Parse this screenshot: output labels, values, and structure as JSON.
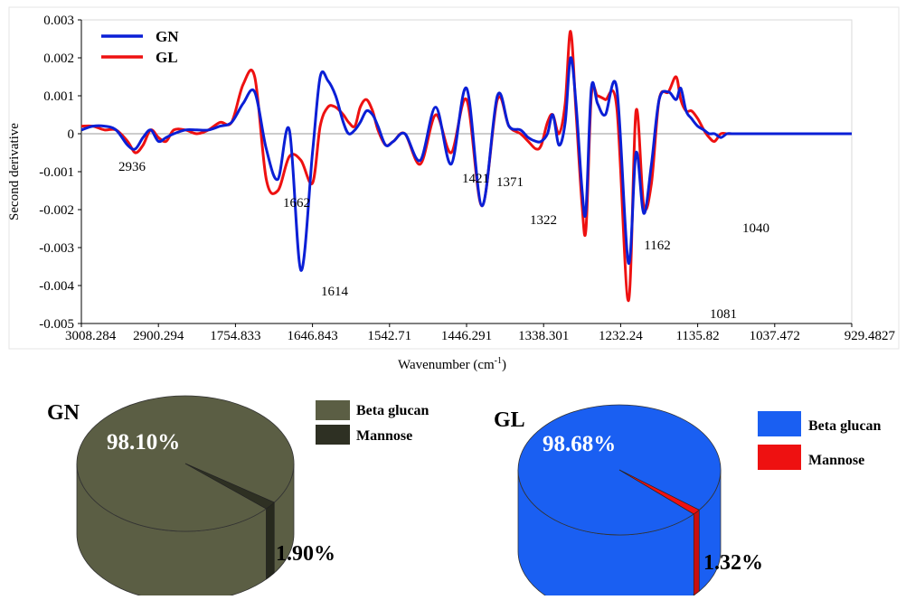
{
  "chart_data": [
    {
      "type": "line",
      "ylabel": "Second derivative",
      "xlabel": "Wavenumber (cm-1)",
      "xlabel_main": "Wavenumber (cm",
      "xlabel_sup": "-1",
      "xlabel_end": ")",
      "ylim": [
        -0.005,
        0.003
      ],
      "yticks": [
        "0.003",
        "0.002",
        "0.001",
        "0",
        "-0.001",
        "-0.002",
        "-0.003",
        "-0.004",
        "-0.005"
      ],
      "xticks": [
        "3008.284",
        "2900.294",
        "1754.833",
        "1646.843",
        "1542.71",
        "1446.291",
        "1338.301",
        "1232.24",
        "1135.82",
        "1037.472",
        "929.4827"
      ],
      "xlim": [
        0,
        10
      ],
      "grid": false,
      "legend_position": "top-left",
      "series": [
        {
          "name": "GN",
          "color": "#0a1fd6",
          "x": [
            0,
            0.15,
            0.3,
            0.45,
            0.6,
            0.7,
            0.8,
            0.9,
            1.0,
            1.1,
            1.2,
            1.35,
            1.5,
            1.65,
            1.8,
            1.95,
            2.1,
            2.25,
            2.4,
            2.55,
            2.7,
            2.85,
            3.0,
            3.1,
            3.2,
            3.3,
            3.4,
            3.47,
            3.55,
            3.62,
            3.7,
            3.78,
            3.85,
            3.95,
            4.05,
            4.2,
            4.4,
            4.6,
            4.8,
            5.0,
            5.2,
            5.4,
            5.55,
            5.7,
            5.8,
            5.9,
            5.97,
            6.05,
            6.12,
            6.2,
            6.28,
            6.35,
            6.42,
            6.5,
            6.55,
            6.62,
            6.7,
            6.8,
            6.95,
            7.1,
            7.2,
            7.3,
            7.4,
            7.5,
            7.62,
            7.72,
            7.78,
            7.85,
            7.92,
            8.0,
            8.08,
            8.15,
            8.22,
            8.3,
            8.38,
            8.45,
            8.52,
            8.6,
            8.68,
            8.75,
            8.82,
            8.9,
            9.0,
            9.1,
            9.2,
            9.3,
            9.42,
            9.52,
            9.62,
            9.75,
            9.85,
            9.95,
            10.0
          ],
          "values": [
            0.0001,
            0.0002,
            0.0002,
            0.0001,
            -0.0003,
            -0.0004,
            -0.0001,
            0.0001,
            -0.0002,
            -0.0001,
            0.0,
            0.0001,
            0.0001,
            0.0001,
            0.0002,
            0.0003,
            0.0008,
            0.0011,
            -0.0004,
            -0.0012,
            0.0001,
            -0.0036,
            -0.0005,
            0.0015,
            0.0014,
            0.001,
            0.0003,
            0.0,
            0.0001,
            0.0003,
            0.0006,
            0.0005,
            0.0002,
            -0.0003,
            -0.0002,
            0.0,
            -0.0007,
            0.0007,
            -0.0008,
            0.0012,
            -0.0019,
            0.001,
            0.0002,
            0.0001,
            -0.0001,
            -0.0002,
            -0.0002,
            0.0,
            0.0005,
            -0.0003,
            0.0003,
            0.002,
            0.0008,
            -0.0015,
            -0.002,
            0.0012,
            0.0008,
            0.0005,
            0.0012,
            -0.0034,
            -0.0005,
            -0.0021,
            -0.0008,
            0.0009,
            0.0011,
            0.0009,
            0.0012,
            0.0006,
            0.0004,
            0.0002,
            0.0001,
            0.0,
            0.0,
            -0.0001,
            0.0,
            0.0,
            0.0,
            0.0,
            0.0,
            0.0,
            0.0,
            0.0,
            0.0,
            0.0,
            0.0,
            0.0,
            0.0,
            0.0,
            0.0,
            0.0,
            0.0,
            0.0,
            0.0
          ]
        },
        {
          "name": "GL",
          "color": "#ee1111",
          "x": [
            0,
            0.15,
            0.3,
            0.45,
            0.6,
            0.7,
            0.8,
            0.9,
            1.0,
            1.1,
            1.2,
            1.35,
            1.5,
            1.65,
            1.8,
            1.95,
            2.1,
            2.25,
            2.4,
            2.55,
            2.7,
            2.85,
            3.0,
            3.1,
            3.2,
            3.3,
            3.4,
            3.47,
            3.55,
            3.62,
            3.7,
            3.78,
            3.85,
            3.95,
            4.05,
            4.2,
            4.4,
            4.6,
            4.8,
            5.0,
            5.2,
            5.4,
            5.55,
            5.7,
            5.8,
            5.9,
            5.97,
            6.05,
            6.12,
            6.2,
            6.28,
            6.35,
            6.42,
            6.5,
            6.55,
            6.62,
            6.7,
            6.8,
            6.95,
            7.1,
            7.2,
            7.3,
            7.4,
            7.5,
            7.62,
            7.72,
            7.78,
            7.85,
            7.92,
            8.0,
            8.08,
            8.15,
            8.22,
            8.3,
            8.38,
            8.45,
            8.52,
            8.6,
            8.68,
            8.75,
            8.82,
            8.9,
            9.0,
            9.1,
            9.2,
            9.3,
            9.42,
            9.52,
            9.62,
            9.75,
            9.85,
            9.95,
            10.0
          ],
          "values": [
            0.0002,
            0.0002,
            0.0001,
            0.0001,
            -0.0002,
            -0.0005,
            -0.0003,
            0.0001,
            -0.0001,
            -0.0002,
            0.0001,
            0.0001,
            0.0,
            0.0001,
            0.0003,
            0.0003,
            0.0013,
            0.0015,
            -0.0012,
            -0.0015,
            -0.0006,
            -0.0007,
            -0.0013,
            0.0002,
            0.0007,
            0.0007,
            0.0005,
            0.0003,
            0.0002,
            0.0007,
            0.0009,
            0.0006,
            0.0001,
            -0.0003,
            -0.0002,
            0.0,
            -0.0008,
            0.0005,
            -0.0005,
            0.0009,
            -0.0019,
            0.0009,
            0.0002,
            0.0,
            -0.0002,
            -0.0004,
            -0.0003,
            0.0003,
            0.0005,
            0.0,
            0.0008,
            0.0027,
            0.0006,
            -0.0019,
            -0.0025,
            0.001,
            0.001,
            0.0009,
            0.0007,
            -0.0044,
            0.0006,
            -0.0019,
            -0.0013,
            0.0009,
            0.0011,
            0.0015,
            0.0009,
            0.0006,
            0.0006,
            0.0004,
            0.0001,
            -0.0001,
            -0.0002,
            0.0,
            0.0,
            0.0,
            0.0,
            0.0,
            0.0,
            0.0,
            0.0,
            0.0,
            0.0,
            0.0,
            0.0,
            0.0,
            0.0,
            0.0,
            0.0,
            0.0,
            0.0,
            0.0,
            0.0
          ]
        }
      ],
      "annotations": [
        "2936",
        "1662",
        "1614",
        "1421",
        "1371",
        "1322",
        "1162",
        "1081",
        "1040"
      ]
    },
    {
      "type": "pie",
      "title": "GN",
      "labels": [
        "Beta glucan",
        "Mannose"
      ],
      "values": [
        98.1,
        1.9
      ],
      "value_labels": [
        "98.10%",
        "1.90%"
      ],
      "colors": [
        "#5b5e44",
        "#2e3023"
      ],
      "legend_position": "right"
    },
    {
      "type": "pie",
      "title": "GL",
      "labels": [
        "Beta glucan",
        "Mannose"
      ],
      "values": [
        98.68,
        1.32
      ],
      "value_labels": [
        "98.68%",
        "1.32%"
      ],
      "colors": [
        "#1a5ff2",
        "#ee1111"
      ],
      "legend_position": "right"
    }
  ]
}
